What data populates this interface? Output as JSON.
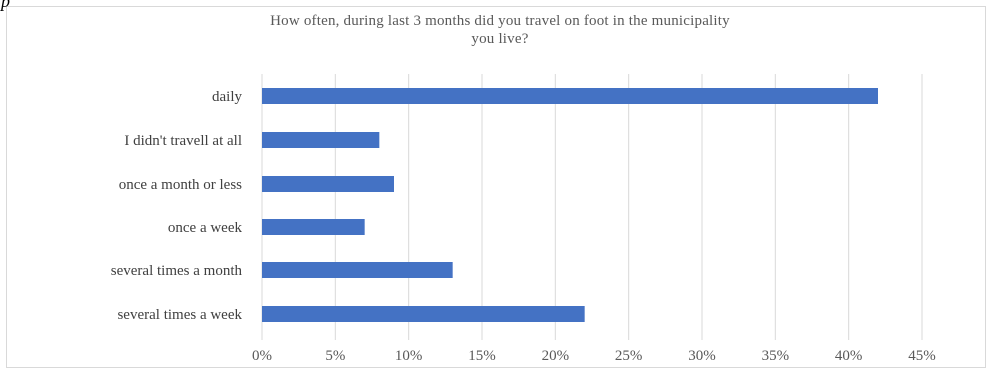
{
  "chart_data": {
    "type": "bar",
    "orientation": "horizontal",
    "title": "How often, during last 3 months did you travel on foot in the municipality you live?",
    "title_lines": [
      "How often, during last 3 months did you travel on foot in the municipality",
      "you live?"
    ],
    "categories": [
      "daily",
      "I didn't travell at all",
      "once a month or less",
      "once a week",
      "several times a month",
      "several times a week"
    ],
    "values": [
      42,
      8,
      9,
      7,
      13,
      22
    ],
    "xlim": [
      0,
      45
    ],
    "xticks": [
      "0%",
      "5%",
      "10%",
      "15%",
      "20%",
      "25%",
      "30%",
      "35%",
      "40%",
      "45%"
    ],
    "tick_values": [
      0,
      5,
      10,
      15,
      20,
      25,
      30,
      35,
      40,
      45
    ],
    "xlabel": "",
    "ylabel": "",
    "grid": "vertical",
    "legend": "none",
    "bar_color": "#4472c4",
    "grid_color": "#d9d9d9"
  }
}
